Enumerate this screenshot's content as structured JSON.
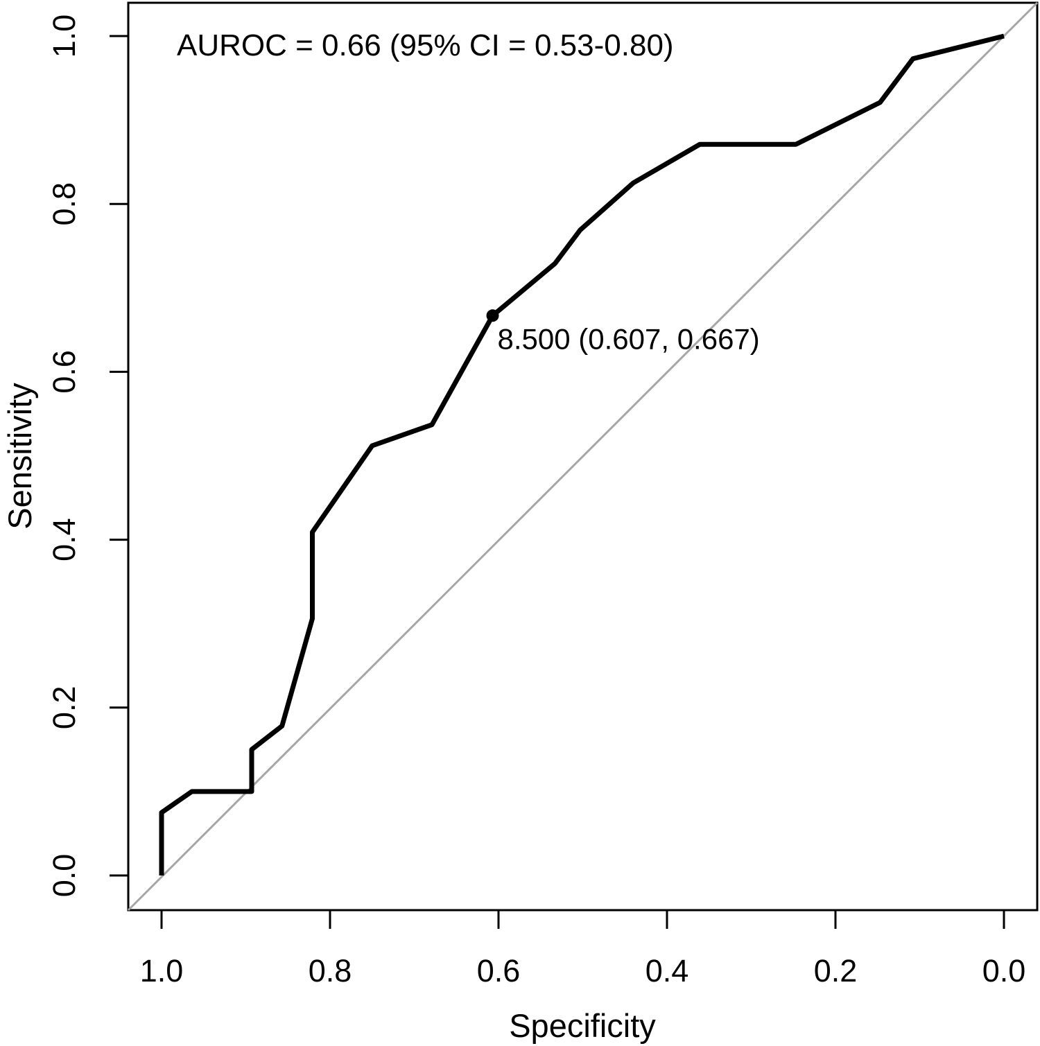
{
  "chart_data": {
    "type": "line",
    "kind": "roc-curve",
    "annotation": "AUROC = 0.66 (95% CI = 0.53-0.80)",
    "auroc": 0.66,
    "ci_95_low": 0.53,
    "ci_95_high": 0.8,
    "xlabel": "Specificity",
    "ylabel": "Sensitivity",
    "xlim": [
      1.0,
      0.0
    ],
    "ylim": [
      0.0,
      1.0
    ],
    "x_axis_reversed": true,
    "grid": false,
    "legend": "none",
    "x_axis": {
      "label": "Specificity",
      "tick_values": [
        1.0,
        0.8,
        0.6,
        0.4,
        0.2,
        0.0
      ],
      "tick_labels": [
        "1.0",
        "0.8",
        "0.6",
        "0.4",
        "0.2",
        "0.0"
      ]
    },
    "y_axis": {
      "label": "Sensitivity",
      "tick_values": [
        0.0,
        0.2,
        0.4,
        0.6,
        0.8,
        1.0
      ],
      "tick_labels": [
        "0.0",
        "0.2",
        "0.4",
        "0.6",
        "0.8",
        "1.0"
      ]
    },
    "series": [
      {
        "name": "ROC curve",
        "color": "#000000",
        "points_spec_sens": [
          [
            1.0,
            0.0
          ],
          [
            1.0,
            0.075
          ],
          [
            0.964,
            0.1
          ],
          [
            0.893,
            0.1
          ],
          [
            0.893,
            0.15
          ],
          [
            0.857,
            0.178
          ],
          [
            0.821,
            0.306
          ],
          [
            0.821,
            0.409
          ],
          [
            0.75,
            0.512
          ],
          [
            0.679,
            0.537
          ],
          [
            0.607,
            0.667
          ],
          [
            0.589,
            0.682
          ],
          [
            0.533,
            0.729
          ],
          [
            0.503,
            0.769
          ],
          [
            0.44,
            0.825
          ],
          [
            0.361,
            0.871
          ],
          [
            0.247,
            0.871
          ],
          [
            0.147,
            0.921
          ],
          [
            0.108,
            0.973
          ],
          [
            0.0,
            1.0
          ]
        ]
      },
      {
        "name": "Chance reference line",
        "color": "#a6a6a6",
        "points_spec_sens": [
          [
            1.0,
            0.0
          ],
          [
            0.0,
            1.0
          ]
        ]
      }
    ],
    "marked_point": {
      "threshold": "8.500",
      "specificity": 0.607,
      "sensitivity": 0.667,
      "label": "8.500 (0.607, 0.667)",
      "color": "#000000"
    }
  },
  "colors": {
    "background": "#ffffff",
    "axis": "#000000",
    "curve": "#000000",
    "reference_line": "#a6a6a6",
    "text": "#000000"
  }
}
